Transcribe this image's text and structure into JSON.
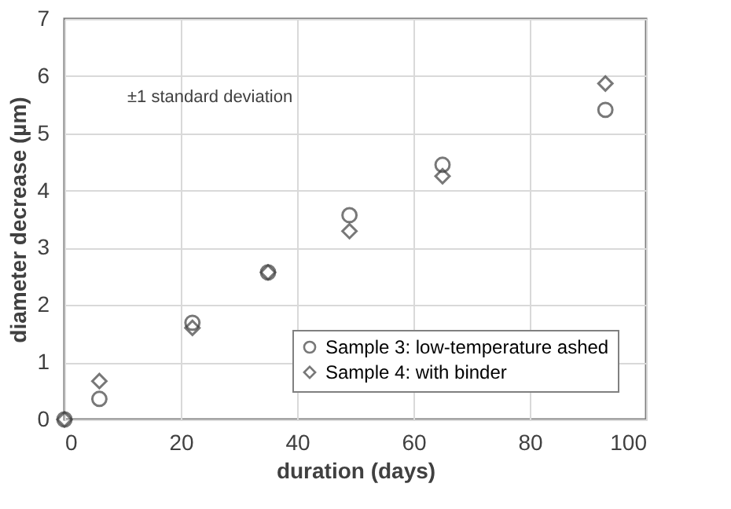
{
  "chart_data": {
    "type": "scatter",
    "xlabel": "duration (days)",
    "ylabel": "diameter decrease (µm)",
    "x": [
      0,
      6,
      22,
      35,
      49,
      65,
      93
    ],
    "series": [
      {
        "name": "Sample 3: low-temperature ashed",
        "color": "#404040",
        "marker": "circle",
        "values": [
          0,
          0.36,
          1.69,
          2.57,
          3.57,
          4.45,
          5.41
        ]
      },
      {
        "name": "Sample 4: with binder",
        "color": "#404040",
        "marker": "diamond",
        "values": [
          0,
          0.67,
          1.6,
          2.57,
          3.29,
          4.25,
          5.87
        ]
      }
    ],
    "xlim": [
      0,
      100
    ],
    "xticks": [
      0,
      20,
      40,
      60,
      80,
      100
    ],
    "ylim": [
      0,
      7
    ],
    "yticks": [
      0,
      1,
      2,
      3,
      4,
      5,
      6,
      7
    ],
    "grid": true,
    "legend": "bottom right",
    "annotations": [
      "±1 standard deviation"
    ]
  }
}
